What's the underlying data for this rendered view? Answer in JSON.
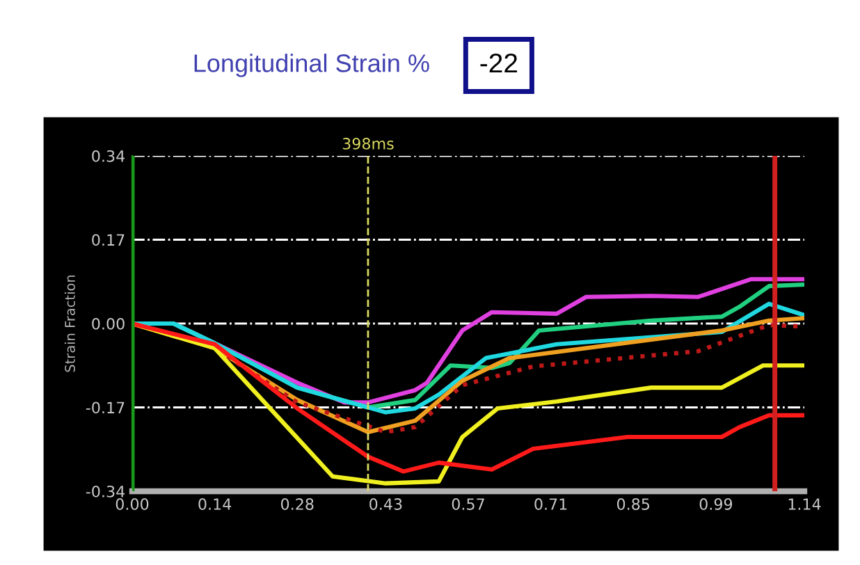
{
  "chart_data": {
    "type": "line",
    "title": "Longitudinal Strain %",
    "annotations": [
      "-22"
    ],
    "ylabel": "Strain Fraction",
    "xlim": [
      0,
      1.14
    ],
    "ylim": [
      -0.34,
      0.34
    ],
    "xticks": [
      {
        "value": 0,
        "label": "0.00"
      },
      0.14,
      0.28,
      0.43,
      0.57,
      0.71,
      0.85,
      0.99,
      1.14
    ],
    "yticks": [
      {
        "value": 0.34,
        "label": "0.34"
      },
      {
        "value": 0.17,
        "label": "0.17"
      },
      {
        "value": 0,
        "label": "0.00"
      },
      {
        "value": -0.17,
        "label": "-0.17"
      },
      {
        "value": -0.34,
        "label": "-0.34"
      }
    ],
    "grid": "y",
    "marker": "none",
    "ref_lines": [
      {
        "axis": "x",
        "value": 0,
        "label": null,
        "color": "#1a9a1a",
        "line_style": "solid"
      },
      {
        "axis": "x",
        "value": 0.4,
        "label": "398ms",
        "color": "#d8d860",
        "line_style": "dashed"
      },
      {
        "axis": "x",
        "value": 1.09,
        "label": null,
        "color": "#d02020",
        "line_style": "solid"
      }
    ],
    "series": [
      {
        "color": "#e040e0",
        "x": [
          0,
          0.07,
          0.14,
          0.28,
          0.36,
          0.4,
          0.48,
          0.5,
          0.56,
          0.61,
          0.72,
          0.77,
          0.88,
          0.96,
          1.05,
          1.14
        ],
        "values": [
          0,
          0,
          -0.04,
          -0.12,
          -0.16,
          -0.16,
          -0.135,
          -0.12,
          -0.014,
          0.023,
          0.02,
          0.054,
          0.056,
          0.054,
          0.09,
          0.09
        ]
      },
      {
        "color": "#20d080",
        "x": [
          0,
          0.07,
          0.14,
          0.28,
          0.4,
          0.48,
          0.54,
          0.61,
          0.64,
          0.69,
          0.88,
          1.0,
          1.03,
          1.08,
          1.14
        ],
        "values": [
          0,
          0,
          -0.04,
          -0.13,
          -0.17,
          -0.155,
          -0.085,
          -0.09,
          -0.08,
          -0.014,
          0.006,
          0.014,
          0.034,
          0.076,
          0.079
        ]
      },
      {
        "color": "#20d8e0",
        "x": [
          0,
          0.07,
          0.14,
          0.28,
          0.43,
          0.48,
          0.52,
          0.6,
          0.72,
          1.0,
          1.08,
          1.14
        ],
        "values": [
          0,
          0,
          -0.04,
          -0.13,
          -0.18,
          -0.172,
          -0.144,
          -0.07,
          -0.042,
          -0.017,
          0.04,
          0.017
        ]
      },
      {
        "color": "#f0a020",
        "x": [
          0,
          0.14,
          0.28,
          0.4,
          0.48,
          0.56,
          0.64,
          1.0,
          1.08,
          1.14
        ],
        "values": [
          0,
          -0.05,
          -0.155,
          -0.22,
          -0.197,
          -0.116,
          -0.07,
          -0.014,
          0.006,
          0.011
        ]
      },
      {
        "color": "#c01818",
        "line_style": "dotted",
        "x": [
          0,
          0.14,
          0.28,
          0.43,
          0.48,
          0.56,
          0.68,
          0.96,
          1.08,
          1.14
        ],
        "values": [
          0,
          -0.05,
          -0.16,
          -0.22,
          -0.21,
          -0.125,
          -0.087,
          -0.056,
          -0.003,
          -0.006
        ]
      },
      {
        "color": "#f0f020",
        "x": [
          0,
          0.14,
          0.24,
          0.34,
          0.43,
          0.52,
          0.56,
          0.62,
          0.72,
          0.88,
          1.0,
          1.07,
          1.14
        ],
        "values": [
          0,
          -0.05,
          -0.18,
          -0.31,
          -0.324,
          -0.32,
          -0.23,
          -0.172,
          -0.158,
          -0.13,
          -0.13,
          -0.085,
          -0.085
        ]
      },
      {
        "color": "#ff1a1a",
        "x": [
          0,
          0.14,
          0.28,
          0.4,
          0.46,
          0.52,
          0.61,
          0.68,
          0.84,
          1.0,
          1.03,
          1.08,
          1.14
        ],
        "values": [
          0,
          -0.042,
          -0.172,
          -0.27,
          -0.3,
          -0.282,
          -0.296,
          -0.254,
          -0.23,
          -0.23,
          -0.21,
          -0.186,
          -0.186
        ]
      }
    ]
  }
}
